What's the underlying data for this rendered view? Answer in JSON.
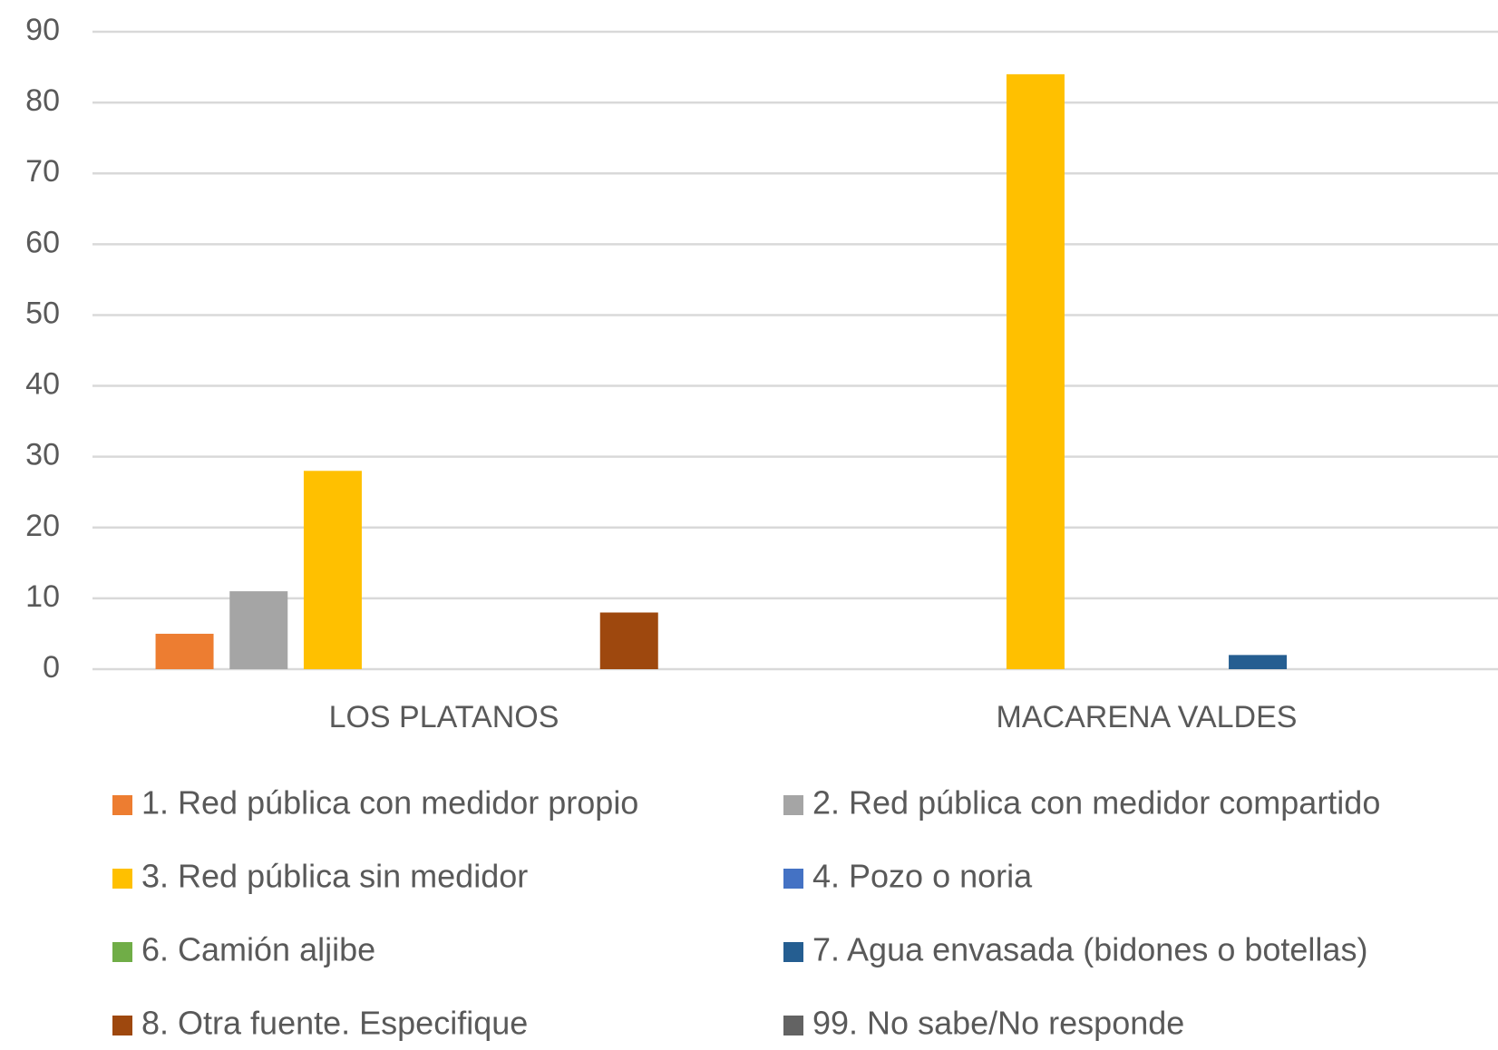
{
  "chart_data": {
    "type": "bar",
    "categories": [
      "LOS PLATANOS",
      "MACARENA VALDES"
    ],
    "series": [
      {
        "name": "1. Red pública con medidor propio",
        "color": "#ED7D31",
        "values": [
          5,
          0
        ]
      },
      {
        "name": "2. Red pública con medidor compartido",
        "color": "#A5A5A5",
        "values": [
          11,
          0
        ]
      },
      {
        "name": "3. Red pública sin medidor",
        "color": "#FFC000",
        "values": [
          28,
          84
        ]
      },
      {
        "name": "4. Pozo o noria",
        "color": "#4472C4",
        "values": [
          0,
          0
        ]
      },
      {
        "name": "6. Camión aljibe",
        "color": "#70AD47",
        "values": [
          0,
          0
        ]
      },
      {
        "name": "7. Agua envasada (bidones o botellas)",
        "color": "#255E91",
        "values": [
          0,
          2
        ]
      },
      {
        "name": "8. Otra fuente. Especifique",
        "color": "#9E480E",
        "values": [
          8,
          0
        ]
      },
      {
        "name": "99. No sabe/No responde",
        "color": "#636363",
        "values": [
          0,
          0
        ]
      }
    ],
    "ylim": [
      0,
      90
    ],
    "yticks": [
      0,
      10,
      20,
      30,
      40,
      50,
      60,
      70,
      80,
      90
    ],
    "grid": true,
    "legend": "bottom"
  }
}
